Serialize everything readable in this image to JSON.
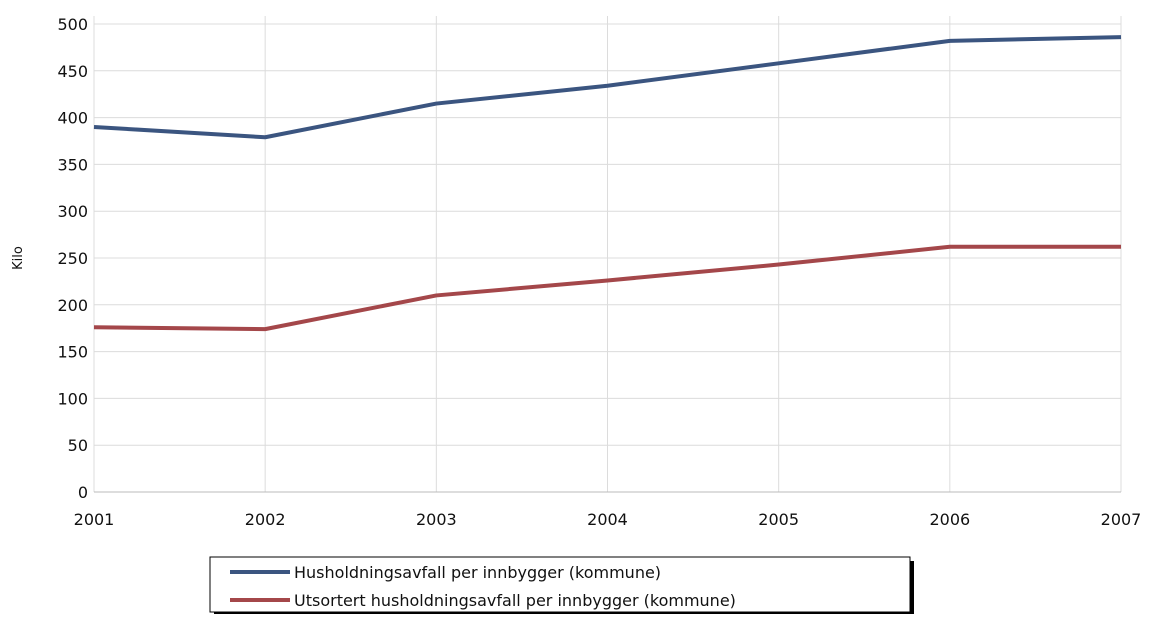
{
  "chart_data": {
    "type": "line",
    "y_label": "Kilo",
    "x": [
      2001,
      2002,
      2003,
      2004,
      2005,
      2006,
      2007
    ],
    "series": [
      {
        "name": "Husholdningsavfall per innbygger (kommune)",
        "color": "#3b5580",
        "values": [
          390,
          379,
          415,
          434,
          458,
          482,
          486
        ]
      },
      {
        "name": "Utsortert husholdningsavfall per innbygger (kommune)",
        "color": "#a4474a",
        "values": [
          176,
          174,
          210,
          226,
          243,
          262,
          262
        ]
      }
    ],
    "xlim": [
      2001,
      2007
    ],
    "xticks": [
      2001,
      2002,
      2003,
      2004,
      2005,
      2006,
      2007
    ],
    "ylim": [
      0,
      500
    ],
    "yticks": [
      0,
      50,
      100,
      150,
      200,
      250,
      300,
      350,
      400,
      450,
      500
    ],
    "grid": true,
    "legend": "bottom"
  }
}
